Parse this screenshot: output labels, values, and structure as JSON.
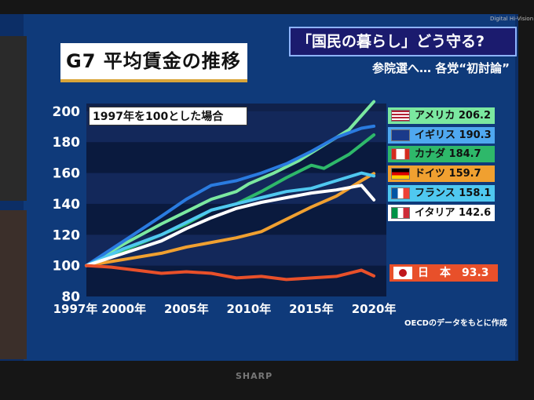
{
  "header": {
    "title": "G7 平均賃金の推移",
    "headline": "「国民の暮らし」どう守る?",
    "subheadline": "参院選へ… 各党“初討論”",
    "brand": "Digital Hi-Vision"
  },
  "note": "1997年を100とした場合",
  "source": "OECDのデータをもとに作成",
  "tv_brand": "SHARP",
  "chart_data": {
    "type": "line",
    "title": "G7 平均賃金の推移",
    "subtitle": "1997年を100とした場合",
    "xlabel": "",
    "ylabel": "",
    "x": [
      1997,
      2000,
      2005,
      2010,
      2015,
      2020
    ],
    "x_tick_labels": [
      "1997年",
      "2000年",
      "2005年",
      "2010年",
      "2015年",
      "2020年"
    ],
    "y_ticks": [
      80,
      100,
      120,
      140,
      160,
      180,
      200
    ],
    "xlim": [
      1997,
      2021
    ],
    "ylim": [
      80,
      205
    ],
    "grid": "horizontal bands",
    "legend_position": "right",
    "series": [
      {
        "name": "アメリカ",
        "value_label": "206.2",
        "color": "#7be8a0",
        "flag": "us-flag",
        "values": [
          [
            1997,
            100
          ],
          [
            2000,
            114
          ],
          [
            2003,
            127
          ],
          [
            2005,
            135
          ],
          [
            2007,
            143
          ],
          [
            2009,
            148
          ],
          [
            2010,
            153
          ],
          [
            2012,
            160
          ],
          [
            2014,
            168
          ],
          [
            2016,
            178
          ],
          [
            2018,
            188
          ],
          [
            2020,
            206.2
          ]
        ]
      },
      {
        "name": "イギリス",
        "value_label": "190.3",
        "color": "#2a7be0",
        "flag": "uk-flag",
        "values": [
          [
            1997,
            100
          ],
          [
            2000,
            116
          ],
          [
            2003,
            132
          ],
          [
            2005,
            143
          ],
          [
            2007,
            152
          ],
          [
            2009,
            155
          ],
          [
            2011,
            160
          ],
          [
            2013,
            166
          ],
          [
            2015,
            174
          ],
          [
            2017,
            183
          ],
          [
            2019,
            189
          ],
          [
            2020,
            190.3
          ]
        ]
      },
      {
        "name": "カナダ",
        "value_label": "184.7",
        "color": "#2eb86a",
        "flag": "canada-flag",
        "values": [
          [
            1997,
            100
          ],
          [
            2000,
            110
          ],
          [
            2003,
            120
          ],
          [
            2005,
            127
          ],
          [
            2007,
            136
          ],
          [
            2009,
            140
          ],
          [
            2011,
            148
          ],
          [
            2013,
            157
          ],
          [
            2015,
            165
          ],
          [
            2016,
            163
          ],
          [
            2018,
            172
          ],
          [
            2020,
            184.7
          ]
        ]
      },
      {
        "name": "ドイツ",
        "value_label": "159.7",
        "color": "#f0a030",
        "flag": "germany-flag",
        "values": [
          [
            1997,
            100
          ],
          [
            2000,
            104
          ],
          [
            2003,
            108
          ],
          [
            2005,
            112
          ],
          [
            2007,
            115
          ],
          [
            2009,
            118
          ],
          [
            2011,
            122
          ],
          [
            2013,
            130
          ],
          [
            2015,
            138
          ],
          [
            2017,
            145
          ],
          [
            2019,
            155
          ],
          [
            2020,
            159.7
          ]
        ]
      },
      {
        "name": "フランス",
        "value_label": "158.1",
        "color": "#4fc8f0",
        "flag": "france-flag",
        "values": [
          [
            1997,
            100
          ],
          [
            2000,
            111
          ],
          [
            2003,
            120
          ],
          [
            2005,
            128
          ],
          [
            2007,
            136
          ],
          [
            2009,
            140
          ],
          [
            2011,
            144
          ],
          [
            2013,
            148
          ],
          [
            2015,
            150
          ],
          [
            2017,
            155
          ],
          [
            2019,
            160
          ],
          [
            2020,
            158.1
          ]
        ]
      },
      {
        "name": "イタリア",
        "value_label": "142.6",
        "color": "#ffffff",
        "flag": "italy-flag",
        "values": [
          [
            1997,
            100
          ],
          [
            2000,
            108
          ],
          [
            2003,
            116
          ],
          [
            2005,
            124
          ],
          [
            2007,
            131
          ],
          [
            2009,
            137
          ],
          [
            2011,
            141
          ],
          [
            2013,
            144
          ],
          [
            2015,
            147
          ],
          [
            2017,
            149
          ],
          [
            2019,
            152
          ],
          [
            2020,
            142.6
          ]
        ]
      },
      {
        "name": "日　本",
        "value_label": "93.3",
        "color": "#e8502a",
        "flag": "japan-flag",
        "values": [
          [
            1997,
            100
          ],
          [
            1999,
            99
          ],
          [
            2001,
            97
          ],
          [
            2003,
            95
          ],
          [
            2005,
            96
          ],
          [
            2007,
            95
          ],
          [
            2009,
            92
          ],
          [
            2011,
            93
          ],
          [
            2013,
            91
          ],
          [
            2015,
            92
          ],
          [
            2017,
            93
          ],
          [
            2019,
            97
          ],
          [
            2020,
            93.3
          ]
        ]
      }
    ]
  }
}
